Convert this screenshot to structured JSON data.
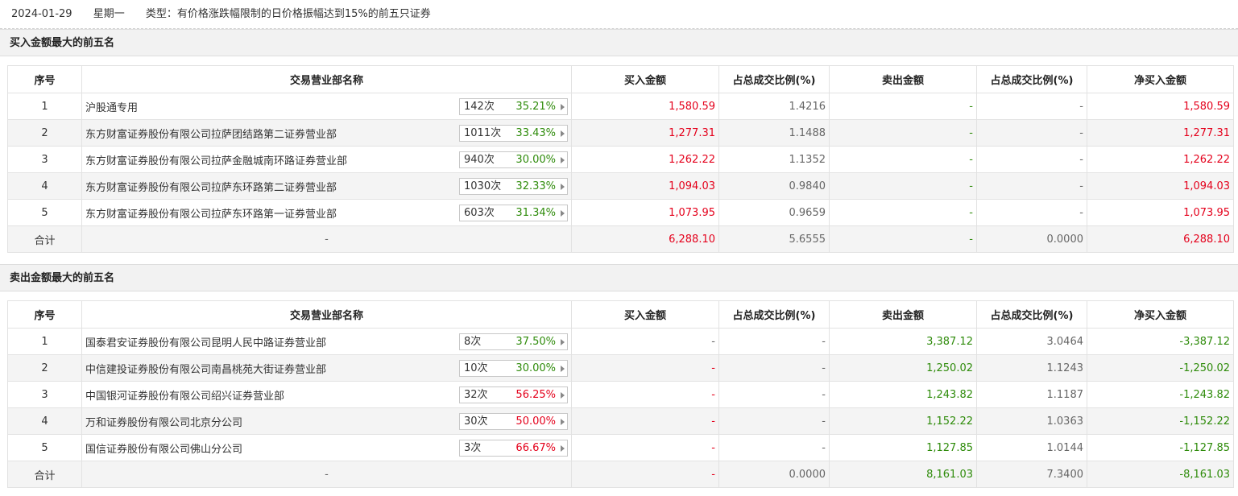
{
  "header": {
    "date": "2024-01-29",
    "weekday": "星期一",
    "type_label": "类型：有价格涨跌幅限制的日价格振幅达到15%的前五只证券"
  },
  "columns": [
    "序号",
    "交易营业部名称",
    "买入金额",
    "占总成交比例(%)",
    "卖出金额",
    "占总成交比例(%)",
    "净买入金额"
  ],
  "buy_section": {
    "title": "买入金额最大的前五名",
    "rows": [
      {
        "idx": "1",
        "name": "沪股通专用",
        "count": "142次",
        "pct": "35.21%",
        "pct_color": "green",
        "buy": "1,580.59",
        "buy_ratio": "1.4216",
        "sell": "-",
        "sell_ratio": "-",
        "net": "1,580.59"
      },
      {
        "idx": "2",
        "name": "东方财富证券股份有限公司拉萨团结路第二证券营业部",
        "count": "1011次",
        "pct": "33.43%",
        "pct_color": "green",
        "buy": "1,277.31",
        "buy_ratio": "1.1488",
        "sell": "-",
        "sell_ratio": "-",
        "net": "1,277.31"
      },
      {
        "idx": "3",
        "name": "东方财富证券股份有限公司拉萨金融城南环路证券营业部",
        "count": "940次",
        "pct": "30.00%",
        "pct_color": "green",
        "buy": "1,262.22",
        "buy_ratio": "1.1352",
        "sell": "-",
        "sell_ratio": "-",
        "net": "1,262.22"
      },
      {
        "idx": "4",
        "name": "东方财富证券股份有限公司拉萨东环路第二证券营业部",
        "count": "1030次",
        "pct": "32.33%",
        "pct_color": "green",
        "buy": "1,094.03",
        "buy_ratio": "0.9840",
        "sell": "-",
        "sell_ratio": "-",
        "net": "1,094.03"
      },
      {
        "idx": "5",
        "name": "东方财富证券股份有限公司拉萨东环路第一证券营业部",
        "count": "603次",
        "pct": "31.34%",
        "pct_color": "green",
        "buy": "1,073.95",
        "buy_ratio": "0.9659",
        "sell": "-",
        "sell_ratio": "-",
        "net": "1,073.95"
      }
    ],
    "total": {
      "label": "合计",
      "name": "-",
      "buy": "6,288.10",
      "buy_ratio": "5.6555",
      "sell": "-",
      "sell_ratio": "0.0000",
      "net": "6,288.10"
    }
  },
  "sell_section": {
    "title": "卖出金额最大的前五名",
    "rows": [
      {
        "idx": "1",
        "name": "国泰君安证券股份有限公司昆明人民中路证券营业部",
        "count": "8次",
        "pct": "37.50%",
        "pct_color": "green",
        "buy": "-",
        "buy_ratio": "-",
        "sell": "3,387.12",
        "sell_ratio": "3.0464",
        "net": "-3,387.12"
      },
      {
        "idx": "2",
        "name": "中信建投证券股份有限公司南昌桃苑大街证券营业部",
        "count": "10次",
        "pct": "30.00%",
        "pct_color": "green",
        "buy": "-",
        "buy_ratio": "-",
        "sell": "1,250.02",
        "sell_ratio": "1.1243",
        "net": "-1,250.02"
      },
      {
        "idx": "3",
        "name": "中国银河证券股份有限公司绍兴证券营业部",
        "count": "32次",
        "pct": "56.25%",
        "pct_color": "red",
        "buy": "-",
        "buy_ratio": "-",
        "sell": "1,243.82",
        "sell_ratio": "1.1187",
        "net": "-1,243.82"
      },
      {
        "idx": "4",
        "name": "万和证券股份有限公司北京分公司",
        "count": "30次",
        "pct": "50.00%",
        "pct_color": "red",
        "buy": "-",
        "buy_ratio": "-",
        "sell": "1,152.22",
        "sell_ratio": "1.0363",
        "net": "-1,152.22"
      },
      {
        "idx": "5",
        "name": "国信证券股份有限公司佛山分公司",
        "count": "3次",
        "pct": "66.67%",
        "pct_color": "red",
        "buy": "-",
        "buy_ratio": "-",
        "sell": "1,127.85",
        "sell_ratio": "1.0144",
        "net": "-1,127.85"
      }
    ],
    "total": {
      "label": "合计",
      "name": "-",
      "buy": "-",
      "buy_ratio": "0.0000",
      "sell": "8,161.03",
      "sell_ratio": "7.3400",
      "net": "-8,161.03"
    }
  },
  "colors": {
    "red": "#e4001b",
    "green": "#2e8b0a"
  }
}
